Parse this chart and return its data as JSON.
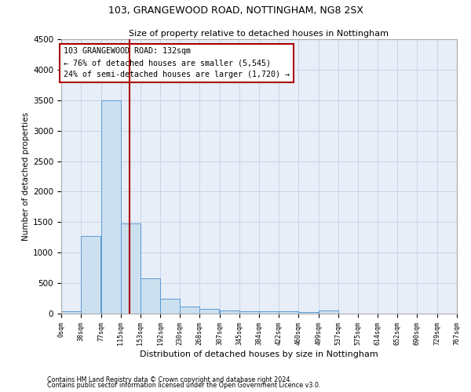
{
  "title1": "103, GRANGEWOOD ROAD, NOTTINGHAM, NG8 2SX",
  "title2": "Size of property relative to detached houses in Nottingham",
  "xlabel": "Distribution of detached houses by size in Nottingham",
  "ylabel": "Number of detached properties",
  "footnote1": "Contains HM Land Registry data © Crown copyright and database right 2024.",
  "footnote2": "Contains public sector information licensed under the Open Government Licence v3.0.",
  "annotation_line1": "103 GRANGEWOOD ROAD: 132sqm",
  "annotation_line2": "← 76% of detached houses are smaller (5,545)",
  "annotation_line3": "24% of semi-detached houses are larger (1,720) →",
  "bar_left_edges": [
    0,
    38,
    77,
    115,
    153,
    192,
    230,
    268,
    307,
    345,
    384,
    422,
    460,
    499,
    537,
    575,
    614,
    652,
    690,
    729
  ],
  "bar_heights": [
    40,
    1270,
    3500,
    1480,
    575,
    240,
    115,
    80,
    50,
    45,
    40,
    35,
    30,
    50,
    5,
    5,
    5,
    5,
    5,
    5
  ],
  "bar_color": "#cce0f0",
  "bar_edge_color": "#5b9bd5",
  "vline_color": "#aa0000",
  "vline_x": 132,
  "annotation_box_edge_color": "#aa0000",
  "grid_color": "#c8d4e8",
  "background_color": "#e8eef8",
  "ylim": [
    0,
    4500
  ],
  "xlim": [
    0,
    767
  ],
  "tick_labels": [
    "0sqm",
    "38sqm",
    "77sqm",
    "115sqm",
    "153sqm",
    "192sqm",
    "230sqm",
    "268sqm",
    "307sqm",
    "345sqm",
    "384sqm",
    "422sqm",
    "460sqm",
    "499sqm",
    "537sqm",
    "575sqm",
    "614sqm",
    "652sqm",
    "690sqm",
    "729sqm",
    "767sqm"
  ],
  "tick_positions": [
    0,
    38,
    77,
    115,
    153,
    192,
    230,
    268,
    307,
    345,
    384,
    422,
    460,
    499,
    537,
    575,
    614,
    652,
    690,
    729,
    767
  ],
  "ytick_positions": [
    0,
    500,
    1000,
    1500,
    2000,
    2500,
    3000,
    3500,
    4000,
    4500
  ],
  "ytick_labels": [
    "0",
    "500",
    "1000",
    "1500",
    "2000",
    "2500",
    "3000",
    "3500",
    "4000",
    "4500"
  ]
}
